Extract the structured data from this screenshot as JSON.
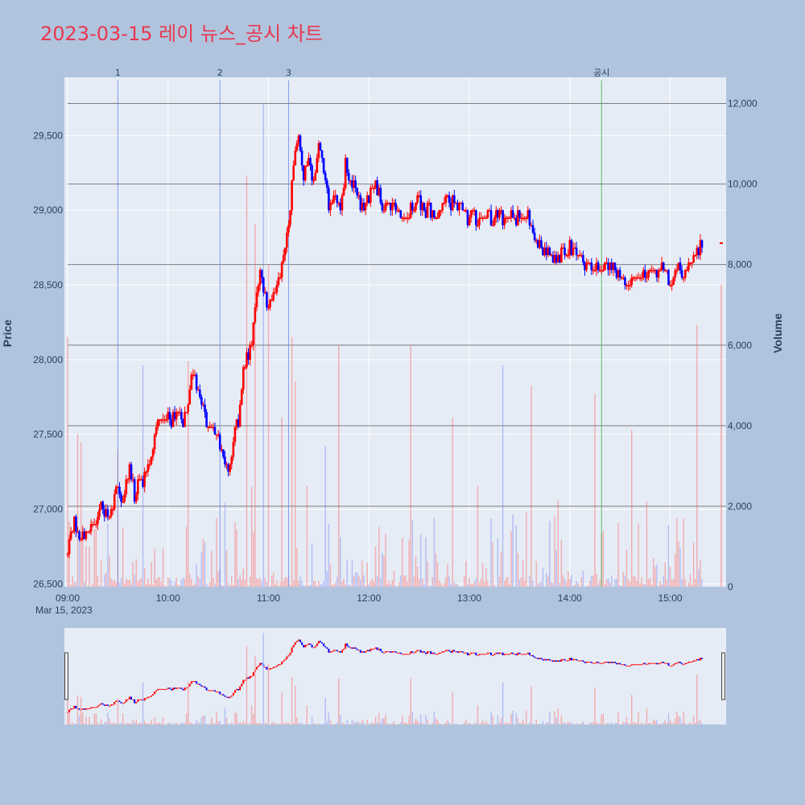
{
  "title": "2023-03-15 레이 뉴스_공시 차트",
  "chart_data": {
    "type": "candlestick",
    "title": "2023-03-15 레이 뉴스_공시 차트",
    "ylabel_left": "Price",
    "ylabel_right": "Volume",
    "x_date_label": "Mar 15, 2023",
    "x_ticks": [
      "09:00",
      "10:00",
      "11:00",
      "12:00",
      "13:00",
      "14:00",
      "15:00"
    ],
    "price_ticks": [
      "26,500",
      "27,000",
      "27,500",
      "28,000",
      "28,500",
      "29,000",
      "29,500"
    ],
    "price_tick_values": [
      26500,
      27000,
      27500,
      28000,
      28500,
      29000,
      29500
    ],
    "volume_ticks": [
      "0",
      "2,000",
      "4,000",
      "6,000",
      "8,000",
      "10,000",
      "12,000"
    ],
    "volume_tick_values": [
      0,
      2000,
      4000,
      6000,
      8000,
      10000,
      12000
    ],
    "price_range": [
      26480,
      29890
    ],
    "volume_range": [
      0,
      12650
    ],
    "time_range": [
      "09:00",
      "15:31"
    ],
    "up_color": "#ff0000",
    "down_color": "#0000ff",
    "news_color": "#6f86e8",
    "disclosure_color": "#3cb043",
    "markers": [
      {
        "label": "1",
        "time": "09:30",
        "kind": "news"
      },
      {
        "label": "2",
        "time": "10:31",
        "kind": "news"
      },
      {
        "label": "3",
        "time": "11:12",
        "kind": "news"
      },
      {
        "label": "공시",
        "time": "14:19",
        "kind": "disclosure"
      }
    ],
    "price_path": [
      [
        "09:00",
        26700
      ],
      [
        "09:04",
        26920
      ],
      [
        "09:08",
        26800
      ],
      [
        "09:12",
        26850
      ],
      [
        "09:16",
        26900
      ],
      [
        "09:20",
        27000
      ],
      [
        "09:25",
        26950
      ],
      [
        "09:30",
        27180
      ],
      [
        "09:33",
        27050
      ],
      [
        "09:37",
        27300
      ],
      [
        "09:40",
        27100
      ],
      [
        "09:45",
        27200
      ],
      [
        "09:48",
        27300
      ],
      [
        "09:51",
        27450
      ],
      [
        "09:53",
        27600
      ],
      [
        "09:57",
        27620
      ],
      [
        "10:02",
        27600
      ],
      [
        "10:06",
        27650
      ],
      [
        "10:09",
        27600
      ],
      [
        "10:12",
        27700
      ],
      [
        "10:14",
        27900
      ],
      [
        "10:17",
        27850
      ],
      [
        "10:20",
        27700
      ],
      [
        "10:22",
        27600
      ],
      [
        "10:26",
        27550
      ],
      [
        "10:30",
        27500
      ],
      [
        "10:33",
        27350
      ],
      [
        "10:36",
        27250
      ],
      [
        "10:40",
        27500
      ],
      [
        "10:43",
        27650
      ],
      [
        "10:45",
        27900
      ],
      [
        "10:48",
        28050
      ],
      [
        "10:51",
        28200
      ],
      [
        "10:53",
        28450
      ],
      [
        "10:55",
        28600
      ],
      [
        "10:58",
        28400
      ],
      [
        "11:02",
        28400
      ],
      [
        "11:06",
        28500
      ],
      [
        "11:09",
        28700
      ],
      [
        "11:12",
        28900
      ],
      [
        "11:14",
        29200
      ],
      [
        "11:16",
        29400
      ],
      [
        "11:18",
        29550
      ],
      [
        "11:21",
        29200
      ],
      [
        "11:24",
        29350
      ],
      [
        "11:27",
        29200
      ],
      [
        "11:30",
        29450
      ],
      [
        "11:33",
        29300
      ],
      [
        "11:36",
        29050
      ],
      [
        "11:40",
        29100
      ],
      [
        "11:43",
        29000
      ],
      [
        "11:46",
        29300
      ],
      [
        "11:49",
        29200
      ],
      [
        "11:52",
        29150
      ],
      [
        "11:56",
        29000
      ],
      [
        "12:00",
        29100
      ],
      [
        "12:04",
        29200
      ],
      [
        "12:08",
        29000
      ],
      [
        "12:12",
        29050
      ],
      [
        "12:17",
        29000
      ],
      [
        "12:20",
        28950
      ],
      [
        "12:25",
        29000
      ],
      [
        "12:30",
        29050
      ],
      [
        "12:35",
        29000
      ],
      [
        "12:40",
        28950
      ],
      [
        "12:45",
        29050
      ],
      [
        "12:50",
        29050
      ],
      [
        "12:55",
        29000
      ],
      [
        "13:00",
        28950
      ],
      [
        "13:05",
        28950
      ],
      [
        "13:10",
        28950
      ],
      [
        "13:15",
        28950
      ],
      [
        "13:20",
        28950
      ],
      [
        "13:25",
        28950
      ],
      [
        "13:30",
        28950
      ],
      [
        "13:35",
        28950
      ],
      [
        "13:40",
        28800
      ],
      [
        "13:45",
        28750
      ],
      [
        "13:50",
        28700
      ],
      [
        "13:55",
        28700
      ],
      [
        "14:00",
        28750
      ],
      [
        "14:05",
        28700
      ],
      [
        "14:10",
        28650
      ],
      [
        "14:15",
        28600
      ],
      [
        "14:19",
        28620
      ],
      [
        "14:24",
        28650
      ],
      [
        "14:30",
        28550
      ],
      [
        "14:35",
        28500
      ],
      [
        "14:40",
        28550
      ],
      [
        "14:45",
        28550
      ],
      [
        "14:50",
        28600
      ],
      [
        "14:55",
        28600
      ],
      [
        "15:00",
        28550
      ],
      [
        "15:05",
        28600
      ],
      [
        "15:08",
        28550
      ],
      [
        "15:10",
        28600
      ],
      [
        "15:14",
        28700
      ],
      [
        "15:17",
        28750
      ],
      [
        "15:19",
        28780
      ]
    ],
    "volume_spikes": [
      [
        "09:00",
        6200
      ],
      [
        "09:06",
        3800
      ],
      [
        "09:08",
        3600
      ],
      [
        "09:30",
        3400
      ],
      [
        "09:45",
        5500
      ],
      [
        "10:12",
        5600
      ],
      [
        "10:34",
        2100
      ],
      [
        "10:40",
        1600
      ],
      [
        "10:47",
        10200
      ],
      [
        "10:52",
        9000
      ],
      [
        "10:57",
        12000
      ],
      [
        "11:00",
        8000
      ],
      [
        "11:08",
        4200
      ],
      [
        "11:14",
        6200
      ],
      [
        "11:16",
        5100
      ],
      [
        "11:23",
        2500
      ],
      [
        "11:34",
        3500
      ],
      [
        "11:42",
        6000
      ],
      [
        "12:25",
        6000
      ],
      [
        "12:50",
        4200
      ],
      [
        "13:20",
        5500
      ],
      [
        "13:37",
        5000
      ],
      [
        "14:15",
        4800
      ],
      [
        "14:37",
        3900
      ],
      [
        "15:08",
        1700
      ],
      [
        "15:16",
        6500
      ]
    ],
    "last_price": 28780,
    "last_volume": 7500
  }
}
